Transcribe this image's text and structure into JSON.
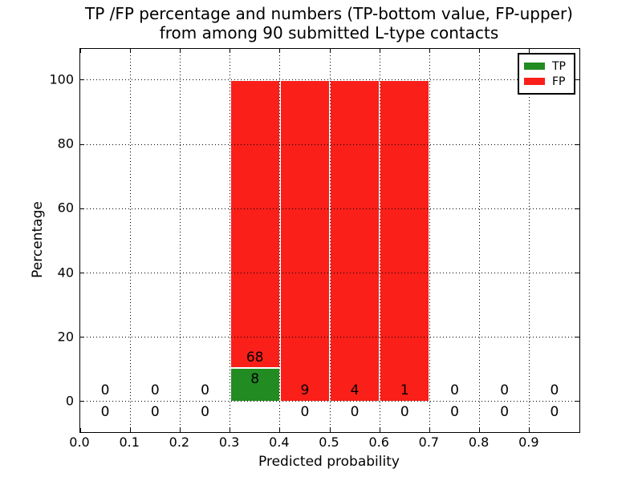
{
  "title": {
    "line1": "TP /FP percentage and numbers (TP-bottom value, FP-upper)",
    "line2": "from among 90 submitted L-type contacts"
  },
  "axes": {
    "xlabel": "Predicted probability",
    "ylabel": "Percentage",
    "x_tick_labels": [
      "0.0",
      "0.1",
      "0.2",
      "0.3",
      "0.4",
      "0.5",
      "0.6",
      "0.7",
      "0.8",
      "0.9"
    ],
    "x_tick_values": [
      0.0,
      0.1,
      0.2,
      0.3,
      0.4,
      0.5,
      0.6,
      0.7,
      0.8,
      0.9
    ],
    "y_tick_labels": [
      "0",
      "20",
      "40",
      "60",
      "80",
      "100"
    ],
    "y_tick_values": [
      0,
      20,
      40,
      60,
      80,
      100
    ],
    "grid_style": "dotted",
    "grid_above_bars": true,
    "tick_direction": "in"
  },
  "legend": {
    "items": [
      {
        "label": "TP",
        "color": "#228b22"
      },
      {
        "label": "FP",
        "color": "#fa1f19"
      }
    ]
  },
  "colors": {
    "tp": "#228b22",
    "fp": "#fa1f19",
    "bar_edge": "#ffffff",
    "text": "#000000",
    "background": "#ffffff"
  },
  "chart_data": {
    "type": "bar",
    "stacked": true,
    "title": "TP /FP percentage and numbers (TP-bottom value, FP-upper) from among 90 submitted L-type contacts",
    "xlabel": "Predicted probability",
    "ylabel": "Percentage",
    "xlim": [
      0.0,
      1.0
    ],
    "ylim": [
      -9.5,
      109.7
    ],
    "total_submitted": 90,
    "series": [
      {
        "name": "TP",
        "color": "#228b22",
        "values": [
          0,
          0,
          0,
          8,
          0,
          0,
          0,
          0,
          0,
          0
        ]
      },
      {
        "name": "FP",
        "color": "#fa1f19",
        "values": [
          0,
          0,
          0,
          68,
          9,
          4,
          1,
          0,
          0,
          0
        ]
      }
    ],
    "bins": [
      {
        "x0": 0.0,
        "x1": 0.1,
        "tp": 0,
        "fp": 0,
        "tp_pct": 0,
        "fp_pct": 0,
        "tp_label_y": -3.3,
        "fp_label_y": 3.4
      },
      {
        "x0": 0.1,
        "x1": 0.2,
        "tp": 0,
        "fp": 0,
        "tp_pct": 0,
        "fp_pct": 0,
        "tp_label_y": -3.3,
        "fp_label_y": 3.4
      },
      {
        "x0": 0.2,
        "x1": 0.3,
        "tp": 0,
        "fp": 0,
        "tp_pct": 0,
        "fp_pct": 0,
        "tp_label_y": -3.3,
        "fp_label_y": 3.4
      },
      {
        "x0": 0.3,
        "x1": 0.4,
        "tp": 8,
        "fp": 68,
        "tp_pct": 10.53,
        "fp_pct": 89.47,
        "tp_label_y": 7.0,
        "fp_label_y": 13.6
      },
      {
        "x0": 0.4,
        "x1": 0.5,
        "tp": 0,
        "fp": 9,
        "tp_pct": 0,
        "fp_pct": 100,
        "tp_label_y": -3.3,
        "fp_label_y": 3.4
      },
      {
        "x0": 0.5,
        "x1": 0.6,
        "tp": 0,
        "fp": 4,
        "tp_pct": 0,
        "fp_pct": 100,
        "tp_label_y": -3.3,
        "fp_label_y": 3.4
      },
      {
        "x0": 0.6,
        "x1": 0.7,
        "tp": 0,
        "fp": 1,
        "tp_pct": 0,
        "fp_pct": 100,
        "tp_label_y": -3.3,
        "fp_label_y": 3.4
      },
      {
        "x0": 0.7,
        "x1": 0.8,
        "tp": 0,
        "fp": 0,
        "tp_pct": 0,
        "fp_pct": 0,
        "tp_label_y": -3.3,
        "fp_label_y": 3.4
      },
      {
        "x0": 0.8,
        "x1": 0.9,
        "tp": 0,
        "fp": 0,
        "tp_pct": 0,
        "fp_pct": 0,
        "tp_label_y": -3.3,
        "fp_label_y": 3.4
      },
      {
        "x0": 0.9,
        "x1": 1.0,
        "tp": 0,
        "fp": 0,
        "tp_pct": 0,
        "fp_pct": 0,
        "tp_label_y": -3.3,
        "fp_label_y": 3.4
      }
    ]
  }
}
